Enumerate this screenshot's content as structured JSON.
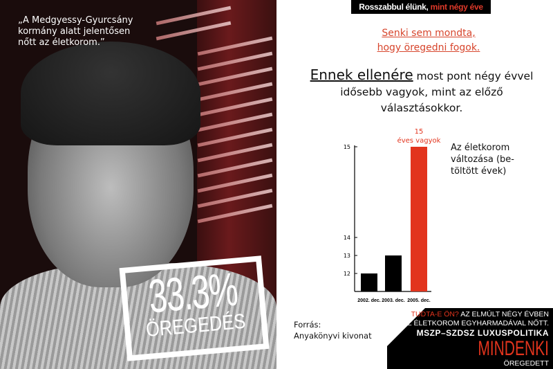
{
  "photo": {
    "quote": "„A Medgyessy-Gyurcsány kormány alatt jelentősen nőtt az életkorom.”",
    "stamp_value": "33.3%",
    "stamp_label": "ÖREGEDÉS"
  },
  "banner": {
    "part1": "Rosszabbul élünk,",
    "part2": " mint négy éve"
  },
  "subtitle": {
    "line1": "Senki sem mondta,",
    "line2": "hogy öregedni fogok."
  },
  "lead": {
    "emph": "Ennek ellenére",
    "rest": " most pont négy évvel idősebb vagyok, mint az előző választásokkor."
  },
  "chart_data": {
    "type": "bar",
    "categories": [
      "2002. dec.",
      "2003. dec.",
      "2005. dec."
    ],
    "values": [
      12,
      13,
      15
    ],
    "y_ticks": [
      12,
      13,
      14,
      15
    ],
    "axis_note": "non-linear (broken) y axis: 12–14 evenly spaced, 15 far above",
    "highlight_label": {
      "value": "15",
      "text": "éves vagyok"
    },
    "legend_text": "Az életkorom változása (be-töltött évek)",
    "colors": {
      "normal": "#000000",
      "highlight": "#e2341d"
    }
  },
  "source": {
    "label": "Forrás:",
    "value": "Anyakönyvi kivonat"
  },
  "corner": {
    "question": "TUDTA-E ÖN?",
    "line1": " AZ ELMÚLT NÉGY ÉVBEN",
    "line2": "AZ ÉLETKOROM EGYHARMADÁVAL NŐTT.",
    "line3": "MSZP–SZDSZ LUXUSPOLITIKA",
    "big": "MINDENKI",
    "small": "ÖREGEDETT"
  }
}
